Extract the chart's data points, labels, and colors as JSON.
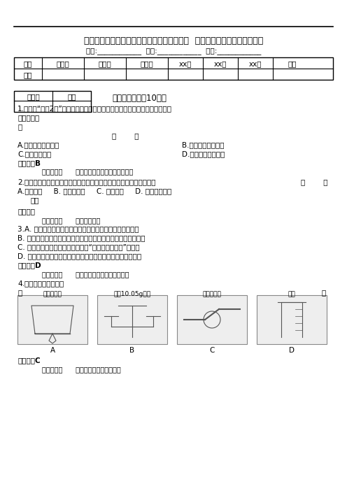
{
  "title": "初中化学福建省永定县坎市中学级化学上学期  期末模拟考试卷考试题及答案",
  "subtitle": "姓名:____________  年级:____________  学号:____________",
  "table1_headers": [
    "题型",
    "选择题",
    "填空题",
    "简答题",
    "xx题",
    "xx题",
    "xx题",
    "总分"
  ],
  "table1_row": [
    "得分",
    "",
    "",
    "",
    "",
    "",
    "",
    ""
  ],
  "section_title": "一、选择题（共10题）",
  "q1_line1": "1.下列从“嫦娥2号”探月卫星发回的数据获取的四项信息中，与化学研究关系",
  "q1_line2": "最为密切的",
  "q1_line3": "是",
  "q1_bracket": "（        ）",
  "q1_optA": "A.月球表面地形数据",
  "q1_optB": "B.月球表面元素分布",
  "q1_optC": "C.月球土壤厚度",
  "q1_optD": "D.地月空间环境数据",
  "q1_answer": "【答案】B",
  "q1_diff": "难度：容易      知识点：我们周围空气单元测试",
  "q2_line1": "2.铁丝在氧气中燃烧实验中，最能说明该变化是化学变化的主要现象是",
  "q2_bracket": "（        ）",
  "q2_opts": "A.剧烈燃烧     B. 放出大量热     C. 火星四射     D. 生成黑色固体",
  "q2_ans_label": "答案",
  "q2_answer": "【答案】",
  "q2_diff": "难度：容易      知识点：氧气",
  "q3_lineA": "3.A. 生活中改变不良的用水习惯，尽可能充分利用每一滴水",
  "q3_lineB": "B. 农业生活中改变灌溉方式，变漫灌为喷灌或滴灌，以节约用水",
  "q3_lineC": "C. 城市生活污水、工业废水应遵循“先净化，后排放”的原则",
  "q3_lineD": "D. 采用燃烧氢气的方式生产水，以补充城市饮用水资源的不足",
  "q3_answer": "【答案】D",
  "q3_diff": "难度：基础      知识点：自然界的水单元测试",
  "q4_line1": "4.下列实验操作正确的",
  "q4_line2": "是",
  "q4_bracket": "（",
  "img_capA": "点燃酒精灯",
  "img_capB": "称量10.05g固体",
  "img_capC": "连接玻璃管",
  "img_capD": "量筒",
  "q4_answer": "【答案】C",
  "q4_diff": "难度：容易      知识点：走进化学实验室",
  "eval_col1": "评卷人",
  "eval_col2": "得分",
  "bg_color": "#ffffff"
}
